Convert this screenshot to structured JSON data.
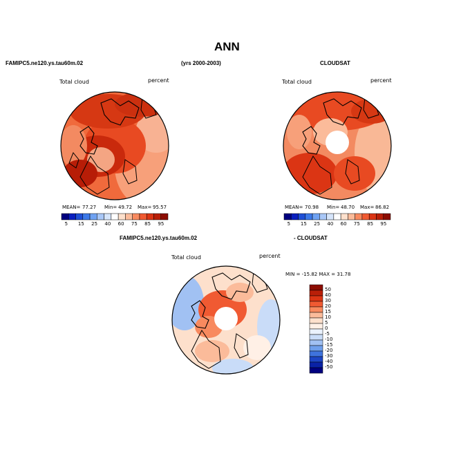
{
  "title": "ANN",
  "header": {
    "model": "FAMIPC5.ne120.ys.tau60m.02",
    "period": "(yrs 2000-2003)",
    "obs": "CLOUDSAT"
  },
  "panels": [
    {
      "variable": "Total cloud",
      "units": "percent",
      "stats": {
        "mean_label": "MEAN=",
        "mean": "77.27",
        "min_label": "Min=",
        "min": "49.72",
        "max_label": "Max=",
        "max": "95.57"
      },
      "colorbar": {
        "ticks": [
          "5",
          "15",
          "25",
          "40",
          "60",
          "75",
          "85",
          "95"
        ],
        "colors": [
          "#00007f",
          "#0a1fbf",
          "#1e4fd6",
          "#3c79e8",
          "#6fa2f2",
          "#a9c7f7",
          "#d6e5fb",
          "#ffffff",
          "#fde0cc",
          "#fbbb9a",
          "#f88a5f",
          "#f05a32",
          "#db3514",
          "#b91f08",
          "#8c0d02"
        ]
      }
    },
    {
      "variable": "Total cloud",
      "units": "percent",
      "stats": {
        "mean_label": "MEAN=",
        "mean": "70.98",
        "min_label": "Min=",
        "min": "48.70",
        "max_label": "Max=",
        "max": "86.82"
      },
      "colorbar": {
        "ticks": [
          "5",
          "15",
          "25",
          "40",
          "60",
          "75",
          "85",
          "95"
        ],
        "colors": [
          "#00007f",
          "#0a1fbf",
          "#1e4fd6",
          "#3c79e8",
          "#6fa2f2",
          "#a9c7f7",
          "#d6e5fb",
          "#ffffff",
          "#fde0cc",
          "#fbbb9a",
          "#f88a5f",
          "#f05a32",
          "#db3514",
          "#b91f08",
          "#8c0d02"
        ]
      }
    }
  ],
  "diff": {
    "header_left": "FAMIPC5.ne120.ys.tau60m.02",
    "header_right": "- CLOUDSAT",
    "variable": "Total cloud",
    "units": "percent",
    "minmax": "MIN = -15.82  MAX =  31.78",
    "colorbar": {
      "ticks": [
        "50",
        "40",
        "30",
        "20",
        "15",
        "10",
        "5",
        "0",
        "-5",
        "-10",
        "-15",
        "-20",
        "-30",
        "-40",
        "-50"
      ],
      "colors": [
        "#8c0d02",
        "#b91f08",
        "#db3514",
        "#f05a32",
        "#f88a5f",
        "#fbbb9a",
        "#fde0cc",
        "#fff0e6",
        "#eaf2fd",
        "#c9dcf8",
        "#a1c1f3",
        "#6f9fec",
        "#3f73dd",
        "#1d45c4",
        "#0a22a6",
        "#00007f"
      ]
    }
  }
}
